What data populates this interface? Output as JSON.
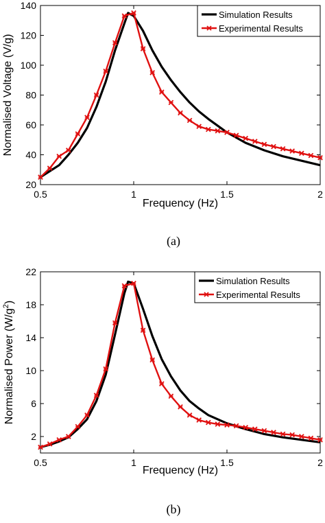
{
  "chart_data": [
    {
      "type": "line",
      "panel_label": "(a)",
      "xlabel": "Frequency (Hz)",
      "ylabel": "Normalised Voltage (V/g)",
      "xlim": [
        0.5,
        2
      ],
      "ylim": [
        20,
        140
      ],
      "xticks": [
        0.5,
        1,
        1.5,
        2
      ],
      "xtick_labels": [
        "0.5",
        "1",
        "1.5",
        "2"
      ],
      "yticks": [
        20,
        40,
        60,
        80,
        100,
        120,
        140
      ],
      "ytick_labels": [
        "20",
        "40",
        "60",
        "80",
        "100",
        "120",
        "140"
      ],
      "legend_position": "top-right",
      "grid": false,
      "series": [
        {
          "name": "Simulation Results",
          "color": "#000000",
          "marker": "none",
          "x": [
            0.5,
            0.55,
            0.6,
            0.65,
            0.7,
            0.75,
            0.8,
            0.85,
            0.9,
            0.95,
            0.97,
            1.0,
            1.05,
            1.1,
            1.15,
            1.2,
            1.25,
            1.3,
            1.35,
            1.4,
            1.5,
            1.6,
            1.7,
            1.8,
            1.9,
            2.0
          ],
          "y": [
            25,
            29,
            33,
            40,
            48,
            58,
            72,
            89,
            110,
            128,
            135,
            133,
            123,
            110,
            99,
            90,
            82,
            75,
            69,
            64,
            55,
            48,
            43,
            39,
            36,
            33
          ]
        },
        {
          "name": "Experimental Results",
          "color": "#e01010",
          "marker": "x",
          "x": [
            0.5,
            0.55,
            0.6,
            0.65,
            0.7,
            0.75,
            0.8,
            0.85,
            0.9,
            0.95,
            1.0,
            1.05,
            1.1,
            1.15,
            1.2,
            1.25,
            1.3,
            1.35,
            1.4,
            1.45,
            1.5,
            1.55,
            1.6,
            1.65,
            1.7,
            1.75,
            1.8,
            1.85,
            1.9,
            1.95,
            2.0
          ],
          "y": [
            25,
            31,
            39,
            43,
            54,
            65,
            80,
            96,
            115,
            133,
            135,
            111,
            95,
            82,
            75,
            68,
            63,
            59,
            57,
            56,
            55,
            53,
            51,
            49,
            47,
            45.5,
            44,
            42.5,
            41,
            39.5,
            38
          ]
        }
      ]
    },
    {
      "type": "line",
      "panel_label": "(b)",
      "xlabel": "Frequency (Hz)",
      "ylabel": "Normalised Power (W/g",
      "ylabel_sup": "2",
      "ylabel_end": ")",
      "xlim": [
        0.5,
        2
      ],
      "ylim": [
        0,
        22
      ],
      "xticks": [
        0.5,
        1,
        1.5,
        2
      ],
      "xtick_labels": [
        "0.5",
        "1",
        "1.5",
        "2"
      ],
      "yticks": [
        2,
        6,
        10,
        14,
        18,
        22
      ],
      "ytick_labels": [
        "2",
        "6",
        "10",
        "14",
        "18",
        "22"
      ],
      "legend_position": "top-right",
      "grid": false,
      "series": [
        {
          "name": "Simulation Results",
          "color": "#000000",
          "marker": "none",
          "x": [
            0.5,
            0.55,
            0.6,
            0.65,
            0.7,
            0.75,
            0.8,
            0.85,
            0.9,
            0.95,
            0.97,
            1.0,
            1.05,
            1.1,
            1.15,
            1.2,
            1.25,
            1.3,
            1.35,
            1.4,
            1.5,
            1.6,
            1.7,
            1.8,
            1.9,
            2.0
          ],
          "y": [
            0.7,
            1.0,
            1.4,
            1.9,
            2.9,
            4.1,
            6.3,
            9.5,
            14.4,
            19.4,
            20.8,
            20.6,
            17.5,
            14.2,
            11.4,
            9.3,
            7.6,
            6.3,
            5.4,
            4.6,
            3.6,
            2.9,
            2.3,
            1.9,
            1.6,
            1.3
          ]
        },
        {
          "name": "Experimental Results",
          "color": "#e01010",
          "marker": "x",
          "x": [
            0.5,
            0.55,
            0.6,
            0.65,
            0.7,
            0.75,
            0.8,
            0.85,
            0.9,
            0.95,
            1.0,
            1.05,
            1.1,
            1.15,
            1.2,
            1.25,
            1.3,
            1.35,
            1.4,
            1.45,
            1.5,
            1.55,
            1.6,
            1.65,
            1.7,
            1.75,
            1.8,
            1.85,
            1.9,
            1.95,
            2.0
          ],
          "y": [
            0.7,
            1.1,
            1.6,
            2.0,
            3.2,
            4.6,
            7.0,
            10.2,
            15.8,
            20.3,
            20.6,
            14.9,
            11.3,
            8.4,
            6.9,
            5.6,
            4.6,
            4.0,
            3.7,
            3.5,
            3.4,
            3.3,
            3.1,
            2.9,
            2.7,
            2.5,
            2.3,
            2.2,
            2.0,
            1.8,
            1.6
          ]
        }
      ]
    }
  ]
}
